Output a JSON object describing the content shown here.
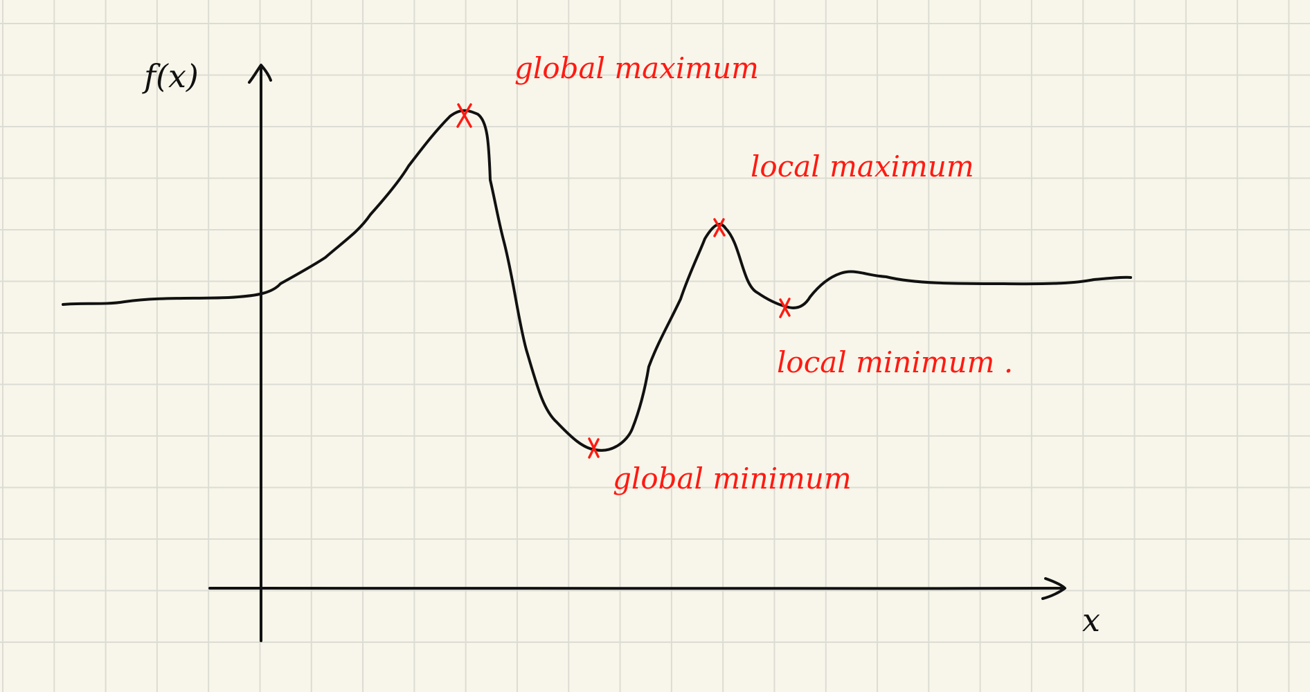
{
  "diagram": {
    "y_axis_label": "f(x)",
    "x_axis_label": "x",
    "annotations": [
      {
        "id": "global-maximum",
        "text": "global maximum"
      },
      {
        "id": "local-maximum",
        "text": "local maximum"
      },
      {
        "id": "local-minimum",
        "text": "local minimum ."
      },
      {
        "id": "global-minimum",
        "text": "global minimum"
      }
    ],
    "colors": {
      "paper": "#f8f6ea",
      "grid": "#dcdcd4",
      "ink": "#111111",
      "annotation": "#ff1a12"
    }
  }
}
